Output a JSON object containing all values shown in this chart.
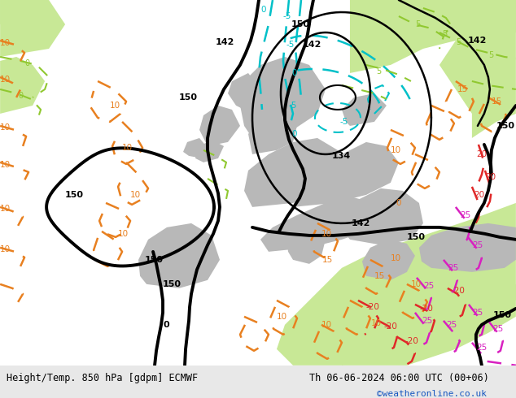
{
  "title_left": "Height/Temp. 850 hPa [gdpm] ECMWF",
  "title_right": "Th 06-06-2024 06:00 UTC (00+06)",
  "watermark": "©weatheronline.co.uk",
  "bg_light_gray": "#d8d8d8",
  "bg_sea": "#d0d0d0",
  "land_green": "#c8e896",
  "land_gray": "#b8b8b8",
  "land_light_green": "#d8eea8",
  "black": "#000000",
  "cyan": "#00c0c8",
  "lime": "#90c830",
  "orange": "#e88020",
  "red": "#e02828",
  "magenta": "#d820c0",
  "footer_bg": "#e8e8e8",
  "footer_text": "#000000",
  "watermark_color": "#1858c0",
  "figsize": [
    6.34,
    4.9
  ],
  "dpi": 100
}
